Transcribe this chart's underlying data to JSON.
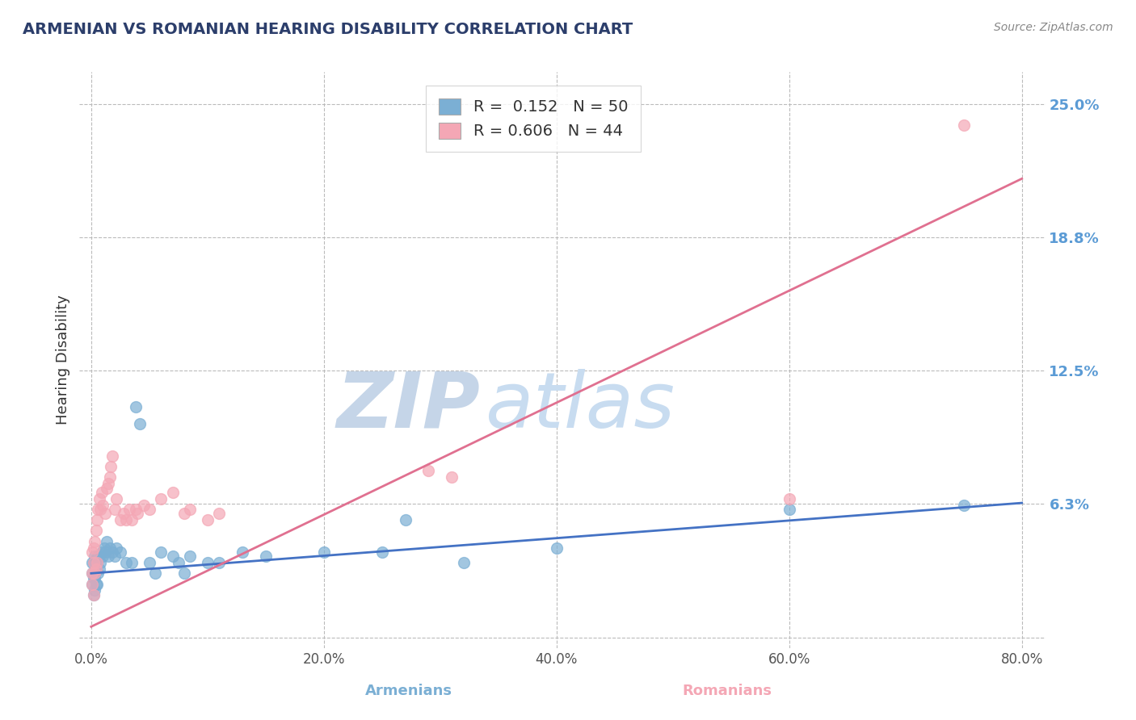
{
  "title": "ARMENIAN VS ROMANIAN HEARING DISABILITY CORRELATION CHART",
  "source_text": "Source: ZipAtlas.com",
  "xlabel_armenians": "Armenians",
  "xlabel_romanians": "Romanians",
  "ylabel": "Hearing Disability",
  "xlim": [
    -0.01,
    0.82
  ],
  "ylim": [
    -0.005,
    0.265
  ],
  "yticks": [
    0.0,
    0.0625,
    0.125,
    0.1875,
    0.25
  ],
  "ytick_labels": [
    "",
    "6.3%",
    "12.5%",
    "18.8%",
    "25.0%"
  ],
  "xtick_labels": [
    "0.0%",
    "20.0%",
    "40.0%",
    "60.0%",
    "80.0%"
  ],
  "xticks": [
    0.0,
    0.2,
    0.4,
    0.6,
    0.8
  ],
  "armenian_R": 0.152,
  "armenian_N": 50,
  "romanian_R": 0.606,
  "romanian_N": 44,
  "blue_color": "#7BAFD4",
  "pink_color": "#F4A7B5",
  "blue_line_color": "#4472C4",
  "pink_line_color": "#E07090",
  "watermark_zip_color": "#D0DCF0",
  "watermark_atlas_color": "#D8E8F0",
  "armenian_x": [
    0.001,
    0.001,
    0.001,
    0.002,
    0.002,
    0.002,
    0.003,
    0.003,
    0.003,
    0.004,
    0.004,
    0.005,
    0.005,
    0.006,
    0.006,
    0.007,
    0.008,
    0.009,
    0.01,
    0.011,
    0.012,
    0.013,
    0.015,
    0.016,
    0.018,
    0.02,
    0.022,
    0.025,
    0.03,
    0.035,
    0.038,
    0.042,
    0.05,
    0.055,
    0.06,
    0.07,
    0.075,
    0.08,
    0.085,
    0.1,
    0.11,
    0.13,
    0.15,
    0.2,
    0.25,
    0.27,
    0.32,
    0.4,
    0.6,
    0.75
  ],
  "armenian_y": [
    0.025,
    0.03,
    0.035,
    0.02,
    0.028,
    0.035,
    0.022,
    0.028,
    0.038,
    0.025,
    0.032,
    0.025,
    0.035,
    0.03,
    0.038,
    0.032,
    0.035,
    0.04,
    0.038,
    0.042,
    0.04,
    0.045,
    0.038,
    0.042,
    0.04,
    0.038,
    0.042,
    0.04,
    0.035,
    0.035,
    0.108,
    0.1,
    0.035,
    0.03,
    0.04,
    0.038,
    0.035,
    0.03,
    0.038,
    0.035,
    0.035,
    0.04,
    0.038,
    0.04,
    0.04,
    0.055,
    0.035,
    0.042,
    0.06,
    0.062
  ],
  "romanian_x": [
    0.001,
    0.001,
    0.001,
    0.002,
    0.002,
    0.002,
    0.003,
    0.003,
    0.004,
    0.004,
    0.005,
    0.005,
    0.006,
    0.007,
    0.008,
    0.009,
    0.01,
    0.012,
    0.013,
    0.015,
    0.016,
    0.017,
    0.018,
    0.02,
    0.022,
    0.025,
    0.028,
    0.03,
    0.033,
    0.035,
    0.038,
    0.04,
    0.045,
    0.05,
    0.06,
    0.07,
    0.08,
    0.085,
    0.1,
    0.11,
    0.29,
    0.31,
    0.6,
    0.75
  ],
  "romanian_y": [
    0.025,
    0.03,
    0.04,
    0.02,
    0.035,
    0.042,
    0.03,
    0.045,
    0.032,
    0.05,
    0.035,
    0.055,
    0.06,
    0.065,
    0.06,
    0.068,
    0.062,
    0.058,
    0.07,
    0.072,
    0.075,
    0.08,
    0.085,
    0.06,
    0.065,
    0.055,
    0.058,
    0.055,
    0.06,
    0.055,
    0.06,
    0.058,
    0.062,
    0.06,
    0.065,
    0.068,
    0.058,
    0.06,
    0.055,
    0.058,
    0.078,
    0.075,
    0.065,
    0.24
  ],
  "arm_line_x0": 0.0,
  "arm_line_y0": 0.03,
  "arm_line_x1": 0.8,
  "arm_line_y1": 0.063,
  "rom_line_x0": 0.0,
  "rom_line_y0": 0.005,
  "rom_line_x1": 0.8,
  "rom_line_y1": 0.215
}
